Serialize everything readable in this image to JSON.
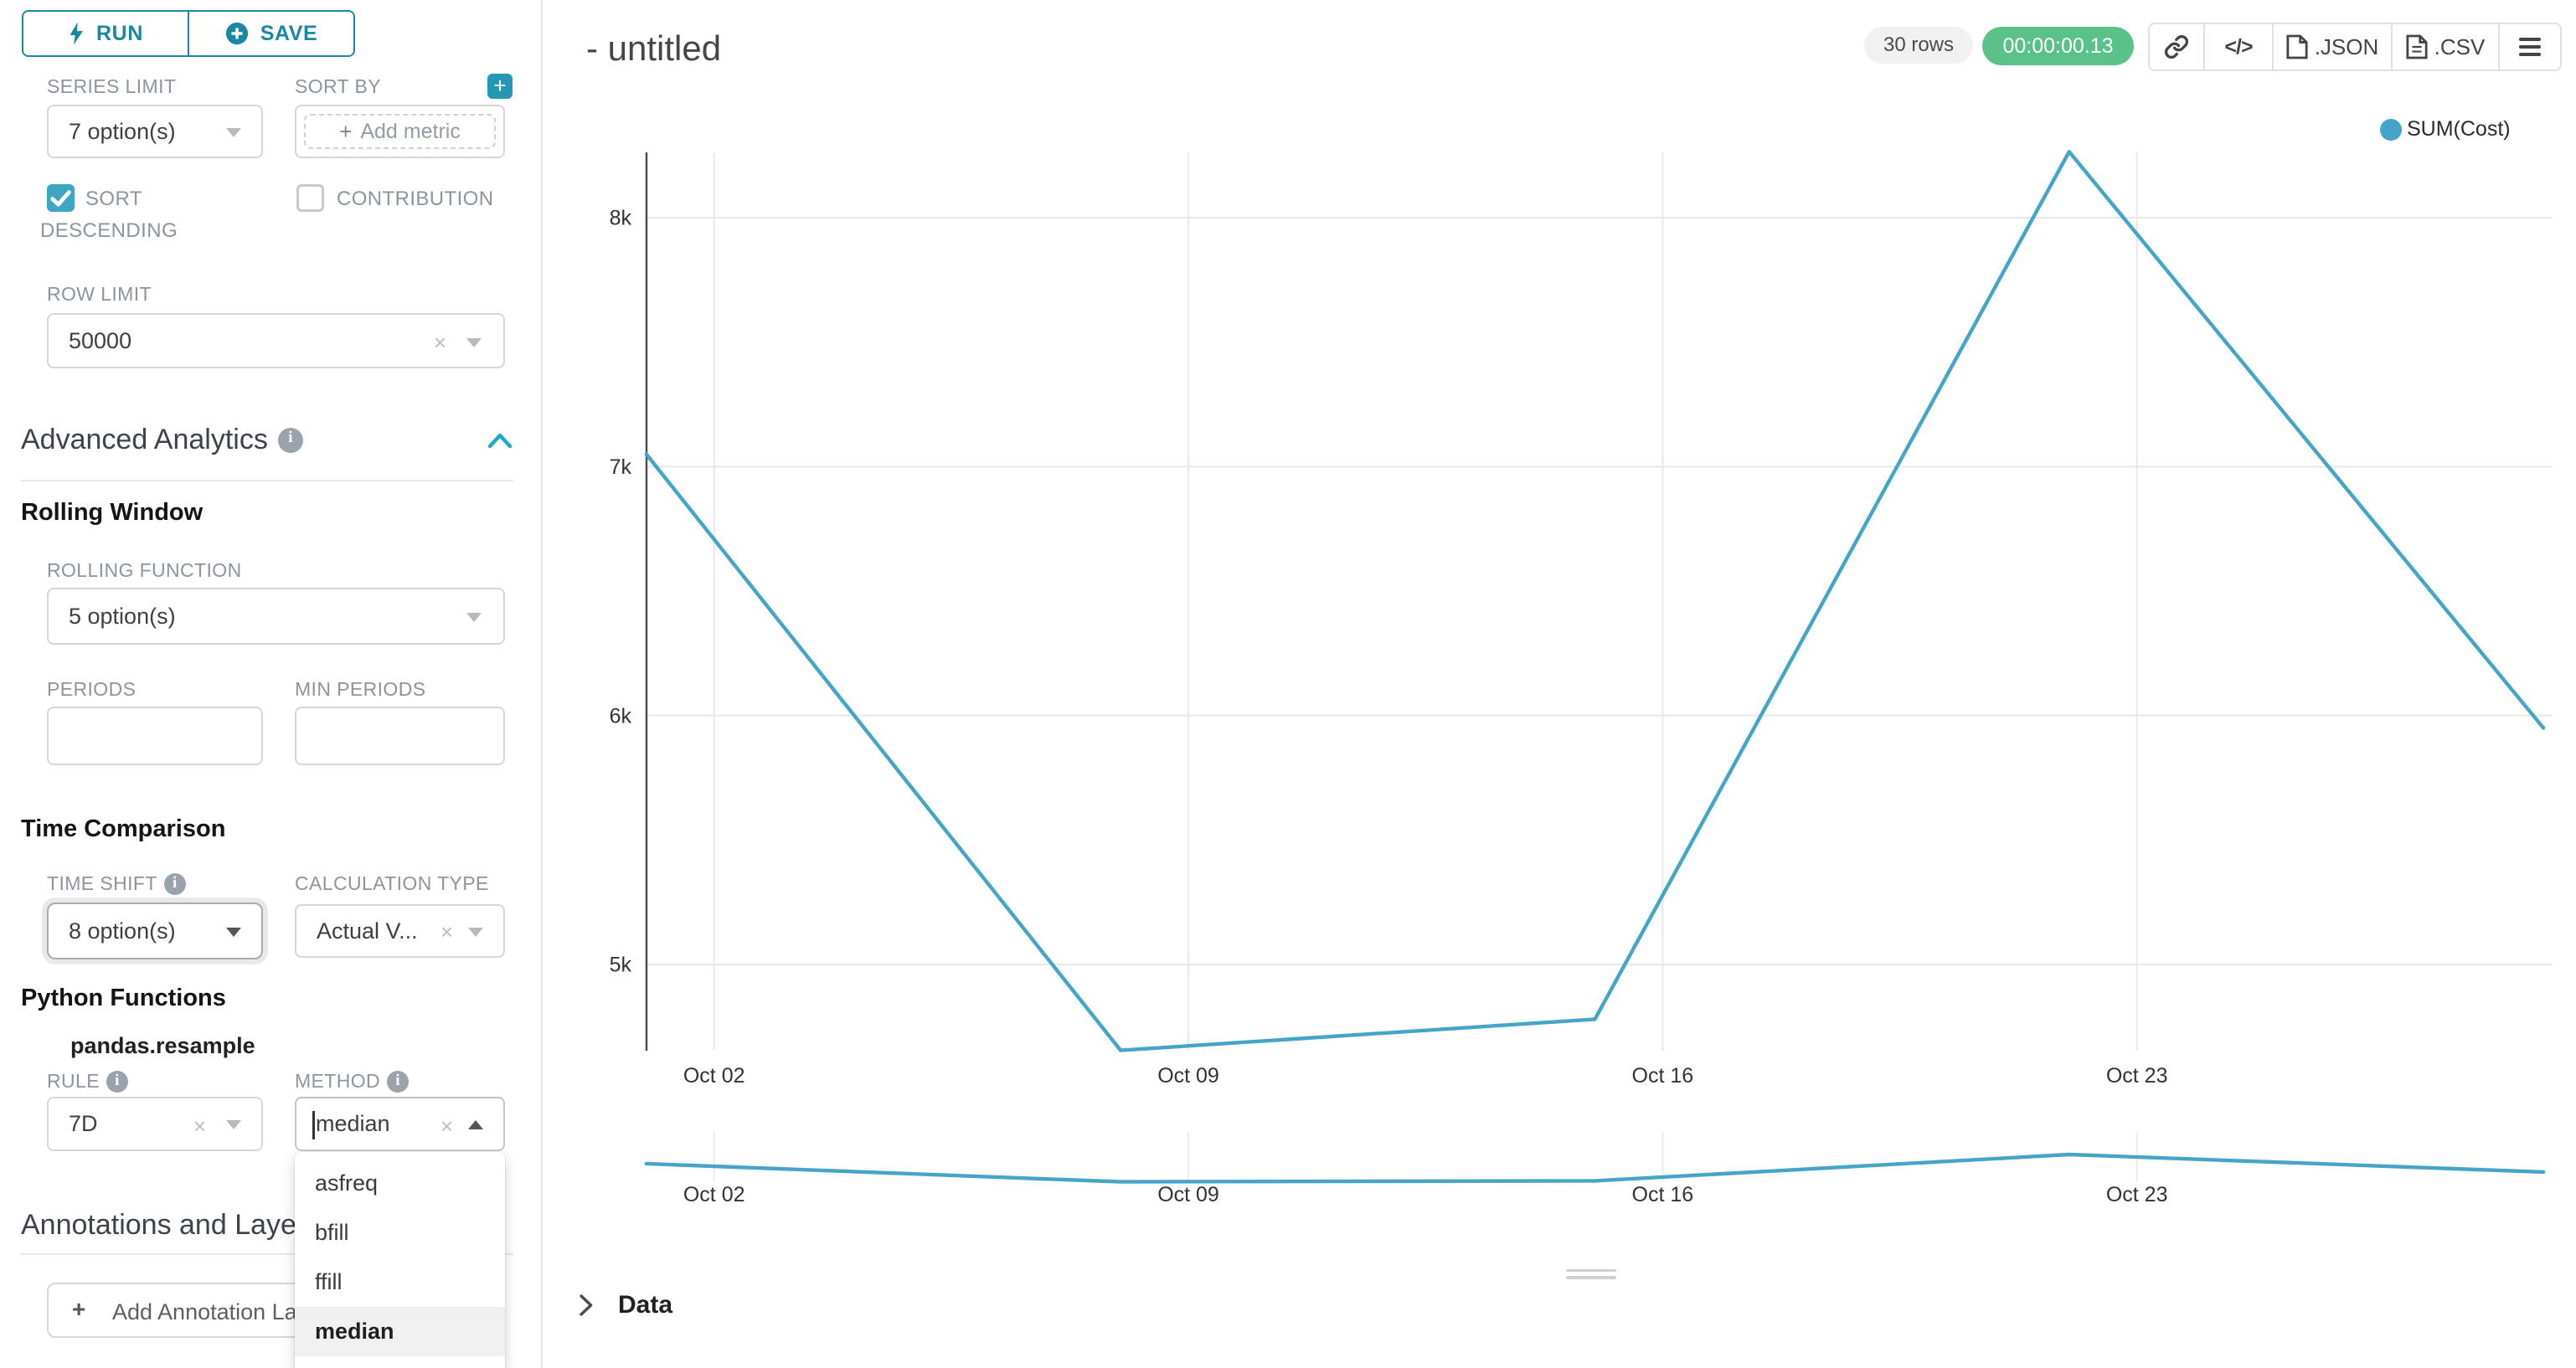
{
  "colors": {
    "primary": "#1a87a3",
    "checkbox": "#3fa5c5",
    "success_badge": "#5ac189",
    "line": "#45a5c9"
  },
  "left_panel": {
    "run_label": "RUN",
    "save_label": "SAVE",
    "series_limit": {
      "label": "SERIES LIMIT",
      "value": "7 option(s)"
    },
    "sort_by": {
      "label": "SORT BY",
      "placeholder": "Add metric"
    },
    "sort_descending_line1": "SORT",
    "sort_descending_line2": "DESCENDING",
    "contribution_label": "CONTRIBUTION",
    "row_limit": {
      "label": "ROW LIMIT",
      "value": "50000"
    },
    "advanced_analytics_title": "Advanced Analytics",
    "rolling_window": {
      "title": "Rolling Window",
      "rolling_function": {
        "label": "ROLLING FUNCTION",
        "value": "5 option(s)"
      },
      "periods_label": "PERIODS",
      "min_periods_label": "MIN PERIODS"
    },
    "time_comparison": {
      "title": "Time Comparison",
      "time_shift": {
        "label": "TIME SHIFT",
        "value": "8 option(s)"
      },
      "calculation_type": {
        "label": "CALCULATION TYPE",
        "value": "Actual V..."
      }
    },
    "python_functions": {
      "title": "Python Functions",
      "subtitle": "pandas.resample",
      "rule": {
        "label": "RULE",
        "value": "7D"
      },
      "method": {
        "label": "METHOD",
        "value": "median",
        "options": [
          "asfreq",
          "bfill",
          "ffill",
          "median"
        ],
        "selected": "median"
      }
    },
    "annotations": {
      "title": "Annotations and Layers",
      "add_button_label": "Add Annotation Layer"
    }
  },
  "header": {
    "title": "- untitled",
    "rows_badge": "30 rows",
    "timer_badge": "00:00:00.13",
    "export_json_label": ".JSON",
    "export_csv_label": ".CSV"
  },
  "data_panel": {
    "title": "Data"
  },
  "chart_data": {
    "type": "line",
    "title": "",
    "legend": [
      "SUM(Cost)"
    ],
    "series": [
      {
        "name": "SUM(Cost)",
        "x": [
          "Oct 01",
          "Oct 08",
          "Oct 15",
          "Oct 22",
          "Oct 29"
        ],
        "values": [
          7050,
          4655,
          4780,
          8265,
          5950
        ]
      }
    ],
    "x_tick_labels": [
      "Oct 02",
      "Oct 09",
      "Oct 16",
      "Oct 23"
    ],
    "y_tick_labels": [
      "5k",
      "6k",
      "7k",
      "8k"
    ],
    "y_tick_values": [
      5000,
      6000,
      7000,
      8000
    ],
    "ylim": [
      4650,
      8270
    ],
    "grid": true,
    "legend_position": "top-right",
    "has_mini_preview": true
  }
}
